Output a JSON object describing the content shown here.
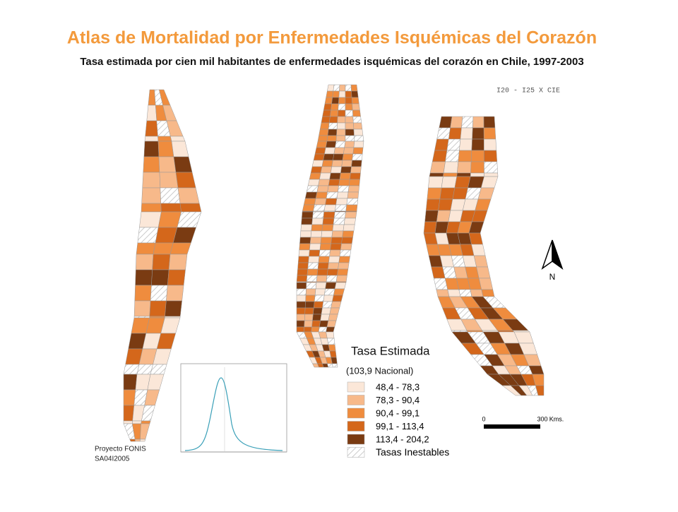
{
  "header": {
    "title": "Atlas de Mortalidad por Enfermedades Isquémicas del Corazón",
    "subtitle": "Tasa estimada por cien mil habitantes de enfermedades isquémicas del corazón en Chile, 1997-2003"
  },
  "code": "I20 - I25 X CIE",
  "north": "N",
  "legend": {
    "title": "Tasa Estimada",
    "subtitle": "(103,9 Nacional)",
    "items": [
      {
        "label": "48,4  -  78,3",
        "color": "#fbe7d8"
      },
      {
        "label": "78,3  -  90,4",
        "color": "#f7b98a"
      },
      {
        "label": "90,4  -  99,1",
        "color": "#ef8c3e"
      },
      {
        "label": "99,1  -  113,4",
        "color": "#d4671b"
      },
      {
        "label": "113,4  -  204,2",
        "color": "#7a3b12"
      }
    ],
    "unstable": "Tasas Inestables"
  },
  "scale": {
    "start": "0",
    "end": "300",
    "unit": "Kms."
  },
  "credit": [
    "Proyecto FONIS",
    "SA04I2005"
  ]
}
